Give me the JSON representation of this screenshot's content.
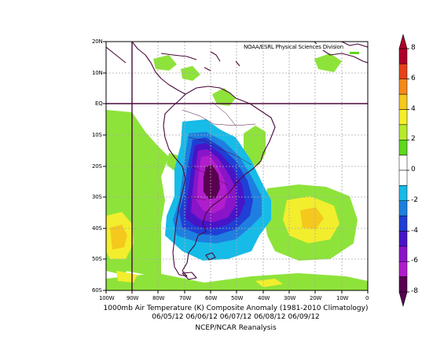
{
  "map": {
    "credit": "NOAA/ESRL Physical Sciences Division",
    "lat_labels": [
      "20N",
      "10N",
      "EQ",
      "10S",
      "20S",
      "30S",
      "40S",
      "50S",
      "60S"
    ],
    "lon_labels": [
      "100W",
      "90W",
      "80W",
      "70W",
      "60W",
      "50W",
      "40W",
      "30W",
      "20W",
      "10W",
      "0"
    ],
    "caption_line1": "1000mb Air Temperature (K) Composite Anomaly (1981-2010 Climatology)",
    "caption_line2": "06/05/12 06/06/12 06/07/12 06/08/12 06/09/12",
    "caption_line3": "NCEP/NCAR Reanalysis"
  },
  "colorbar": {
    "labels": [
      "8",
      "6",
      "4",
      "2",
      "0",
      "-2",
      "-4",
      "-6",
      "-8"
    ],
    "colors": [
      "#b0002a",
      "#e8411a",
      "#f58a1a",
      "#f5c81e",
      "#f5ef2a",
      "#b8ea2c",
      "#5ed81d",
      "#ffffff",
      "#ffffff",
      "#17bbe8",
      "#1e7fe0",
      "#1f3fd6",
      "#4814c8",
      "#8a14c8",
      "#b01dcc",
      "#5a0050"
    ]
  }
}
